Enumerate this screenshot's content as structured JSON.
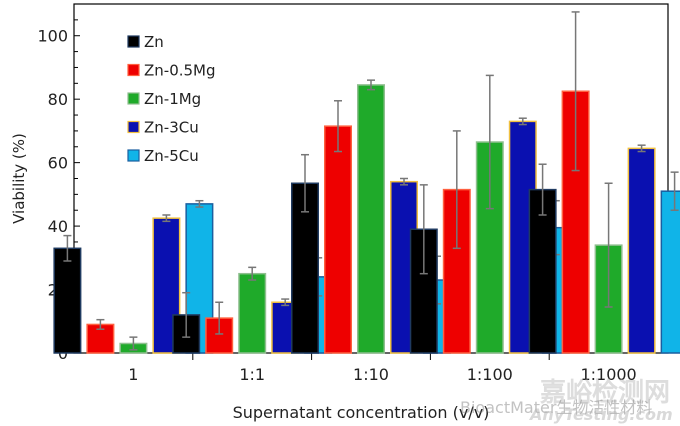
{
  "chart_data": {
    "type": "bar",
    "title": "",
    "xlabel": "Supernatant concentration (v/v)",
    "ylabel": "Viability (%)",
    "ylim": [
      0,
      110
    ],
    "yticks": [
      0,
      20,
      40,
      60,
      80,
      100
    ],
    "grid": false,
    "legend": "top-left",
    "categories": [
      "1",
      "1:1",
      "1:10",
      "1:100",
      "1:1000"
    ],
    "series": [
      {
        "name": "Zn",
        "color": "#000000",
        "edge": "#1f3a60",
        "values": [
          33,
          12,
          53.5,
          39,
          51.5
        ],
        "errors": [
          4,
          7,
          9,
          14,
          8
        ]
      },
      {
        "name": "Zn-0.5Mg",
        "color": "#ee0000",
        "edge": "#ff6040",
        "values": [
          9,
          11,
          71.5,
          51.5,
          82.5
        ],
        "errors": [
          1.5,
          5,
          8,
          18.5,
          25
        ]
      },
      {
        "name": "Zn-1Mg",
        "color": "#1faa2a",
        "edge": "#8fbf8f",
        "values": [
          3,
          25,
          84.5,
          66.5,
          34
        ],
        "errors": [
          2,
          2,
          1.5,
          21,
          19.5
        ]
      },
      {
        "name": "Zn-3Cu",
        "color": "#0a10b0",
        "edge": "#f0c040",
        "values": [
          42.5,
          16,
          54,
          73,
          64.5
        ],
        "errors": [
          1,
          1,
          1,
          1,
          1
        ]
      },
      {
        "name": "Zn-5Cu",
        "color": "#10b4e8",
        "edge": "#1a5fa0",
        "values": [
          47,
          24,
          23,
          39.5,
          51
        ],
        "errors": [
          1,
          6,
          7.5,
          8.5,
          6
        ]
      }
    ]
  },
  "watermark": {
    "account": "BioactMater生物活性材料",
    "site_cn": "嘉峪检测网",
    "site_en": "AnyTesting.com"
  }
}
